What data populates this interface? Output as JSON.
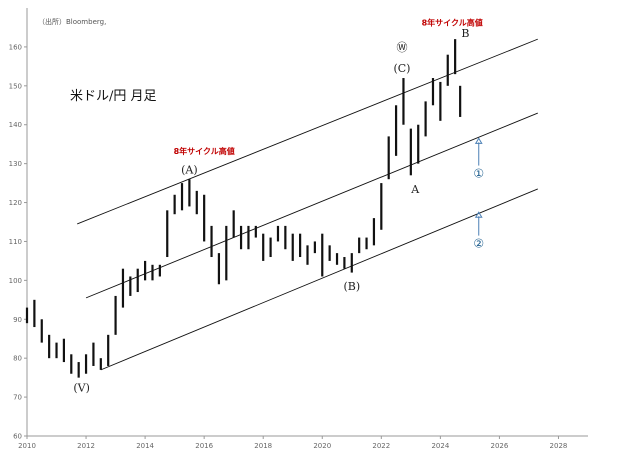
{
  "source_note": "（出所）Bloomberg,",
  "chart_data": {
    "type": "candlestick",
    "title": "米ドル/円 月足",
    "xlabel": "",
    "ylabel": "",
    "xlim": [
      2010,
      2029
    ],
    "ylim": [
      60,
      170
    ],
    "x_ticks": [
      "2010",
      "2012",
      "2014",
      "2016",
      "2018",
      "2020",
      "2022",
      "2024",
      "2026",
      "2028"
    ],
    "y_ticks": [
      "60",
      "70",
      "80",
      "90",
      "100",
      "110",
      "120",
      "130",
      "140",
      "150",
      "160"
    ],
    "grid": false,
    "series": [
      {
        "description": "monthly range (low, high) — approximate",
        "points": [
          {
            "t": 2010.0,
            "lo": 89,
            "hi": 93
          },
          {
            "t": 2010.25,
            "lo": 88,
            "hi": 95
          },
          {
            "t": 2010.5,
            "lo": 84,
            "hi": 90
          },
          {
            "t": 2010.75,
            "lo": 80,
            "hi": 86
          },
          {
            "t": 2011.0,
            "lo": 80,
            "hi": 84
          },
          {
            "t": 2011.25,
            "lo": 79,
            "hi": 85
          },
          {
            "t": 2011.5,
            "lo": 76,
            "hi": 81
          },
          {
            "t": 2011.75,
            "lo": 75,
            "hi": 79
          },
          {
            "t": 2012.0,
            "lo": 76,
            "hi": 81
          },
          {
            "t": 2012.25,
            "lo": 78,
            "hi": 84
          },
          {
            "t": 2012.5,
            "lo": 77,
            "hi": 80
          },
          {
            "t": 2012.75,
            "lo": 78,
            "hi": 86
          },
          {
            "t": 2013.0,
            "lo": 86,
            "hi": 96
          },
          {
            "t": 2013.25,
            "lo": 93,
            "hi": 103
          },
          {
            "t": 2013.5,
            "lo": 96,
            "hi": 101
          },
          {
            "t": 2013.75,
            "lo": 97,
            "hi": 103
          },
          {
            "t": 2014.0,
            "lo": 100,
            "hi": 105
          },
          {
            "t": 2014.25,
            "lo": 100,
            "hi": 104
          },
          {
            "t": 2014.5,
            "lo": 101,
            "hi": 104
          },
          {
            "t": 2014.75,
            "lo": 106,
            "hi": 118
          },
          {
            "t": 2015.0,
            "lo": 117,
            "hi": 122
          },
          {
            "t": 2015.25,
            "lo": 118,
            "hi": 125
          },
          {
            "t": 2015.5,
            "lo": 119,
            "hi": 126
          },
          {
            "t": 2015.75,
            "lo": 117,
            "hi": 123
          },
          {
            "t": 2016.0,
            "lo": 110,
            "hi": 122
          },
          {
            "t": 2016.25,
            "lo": 106,
            "hi": 114
          },
          {
            "t": 2016.5,
            "lo": 99,
            "hi": 107
          },
          {
            "t": 2016.75,
            "lo": 100,
            "hi": 114
          },
          {
            "t": 2017.0,
            "lo": 111,
            "hi": 118
          },
          {
            "t": 2017.25,
            "lo": 108,
            "hi": 114
          },
          {
            "t": 2017.5,
            "lo": 108,
            "hi": 114
          },
          {
            "t": 2017.75,
            "lo": 111,
            "hi": 114
          },
          {
            "t": 2018.0,
            "lo": 105,
            "hi": 112
          },
          {
            "t": 2018.25,
            "lo": 106,
            "hi": 111
          },
          {
            "t": 2018.5,
            "lo": 110,
            "hi": 114
          },
          {
            "t": 2018.75,
            "lo": 108,
            "hi": 114
          },
          {
            "t": 2019.0,
            "lo": 105,
            "hi": 112
          },
          {
            "t": 2019.25,
            "lo": 106,
            "hi": 112
          },
          {
            "t": 2019.5,
            "lo": 104,
            "hi": 109
          },
          {
            "t": 2019.75,
            "lo": 107,
            "hi": 110
          },
          {
            "t": 2020.0,
            "lo": 101,
            "hi": 112
          },
          {
            "t": 2020.25,
            "lo": 105,
            "hi": 109
          },
          {
            "t": 2020.5,
            "lo": 104,
            "hi": 107
          },
          {
            "t": 2020.75,
            "lo": 103,
            "hi": 106
          },
          {
            "t": 2021.0,
            "lo": 102,
            "hi": 107
          },
          {
            "t": 2021.25,
            "lo": 107,
            "hi": 111
          },
          {
            "t": 2021.5,
            "lo": 108,
            "hi": 111
          },
          {
            "t": 2021.75,
            "lo": 109,
            "hi": 116
          },
          {
            "t": 2022.0,
            "lo": 113,
            "hi": 125
          },
          {
            "t": 2022.25,
            "lo": 126,
            "hi": 137
          },
          {
            "t": 2022.5,
            "lo": 132,
            "hi": 145
          },
          {
            "t": 2022.75,
            "lo": 140,
            "hi": 152
          },
          {
            "t": 2023.0,
            "lo": 127,
            "hi": 139
          },
          {
            "t": 2023.25,
            "lo": 130,
            "hi": 140
          },
          {
            "t": 2023.5,
            "lo": 137,
            "hi": 146
          },
          {
            "t": 2023.75,
            "lo": 145,
            "hi": 152
          },
          {
            "t": 2024.0,
            "lo": 141,
            "hi": 151
          },
          {
            "t": 2024.25,
            "lo": 150,
            "hi": 158
          },
          {
            "t": 2024.5,
            "lo": 153,
            "hi": 162
          },
          {
            "t": 2024.67,
            "lo": 142,
            "hi": 150
          }
        ]
      }
    ],
    "channel_lines": [
      {
        "name": "upper",
        "x": [
          2011.7,
          2027.3
        ],
        "y": [
          114.5,
          162
        ]
      },
      {
        "name": "middle",
        "x": [
          2012.0,
          2027.3
        ],
        "y": [
          95.5,
          143
        ]
      },
      {
        "name": "lower",
        "x": [
          2012.5,
          2027.3
        ],
        "y": [
          77,
          123.5
        ]
      }
    ],
    "annotations": [
      {
        "text": "8年サイクル高値",
        "x": 2016.0,
        "y": 132.5,
        "style": "red"
      },
      {
        "text": "(A)",
        "x": 2015.5,
        "y": 127.5,
        "style": "black"
      },
      {
        "text": "8年サイクル高値",
        "x": 2024.4,
        "y": 165.5,
        "style": "red"
      },
      {
        "text": "B",
        "x": 2024.85,
        "y": 162.5,
        "style": "black"
      },
      {
        "text": "Ⓦ",
        "x": 2022.7,
        "y": 159,
        "style": "black"
      },
      {
        "text": "(C)",
        "x": 2022.7,
        "y": 153.5,
        "style": "black"
      },
      {
        "text": "A",
        "x": 2023.15,
        "y": 122.5,
        "style": "black"
      },
      {
        "text": "(B)",
        "x": 2021.0,
        "y": 97.5,
        "style": "black"
      },
      {
        "text": "(V)",
        "x": 2011.85,
        "y": 71.5,
        "style": "black"
      },
      {
        "text": "①",
        "x": 2025.3,
        "y": 126.5,
        "style": "blue"
      },
      {
        "text": "②",
        "x": 2025.3,
        "y": 108.5,
        "style": "blue"
      }
    ],
    "arrows": [
      {
        "x": 2025.3,
        "y_from": 129.5,
        "y_to": 136.5,
        "color": "#4a7fb5"
      },
      {
        "x": 2025.3,
        "y_from": 111.5,
        "y_to": 117.5,
        "color": "#4a7fb5"
      }
    ],
    "colors": {
      "bars": "#111111",
      "channel": "#111111",
      "axis": "#999999",
      "red": "#c00000",
      "blue": "#1f5f8f",
      "arrow": "#4a7fb5"
    }
  }
}
